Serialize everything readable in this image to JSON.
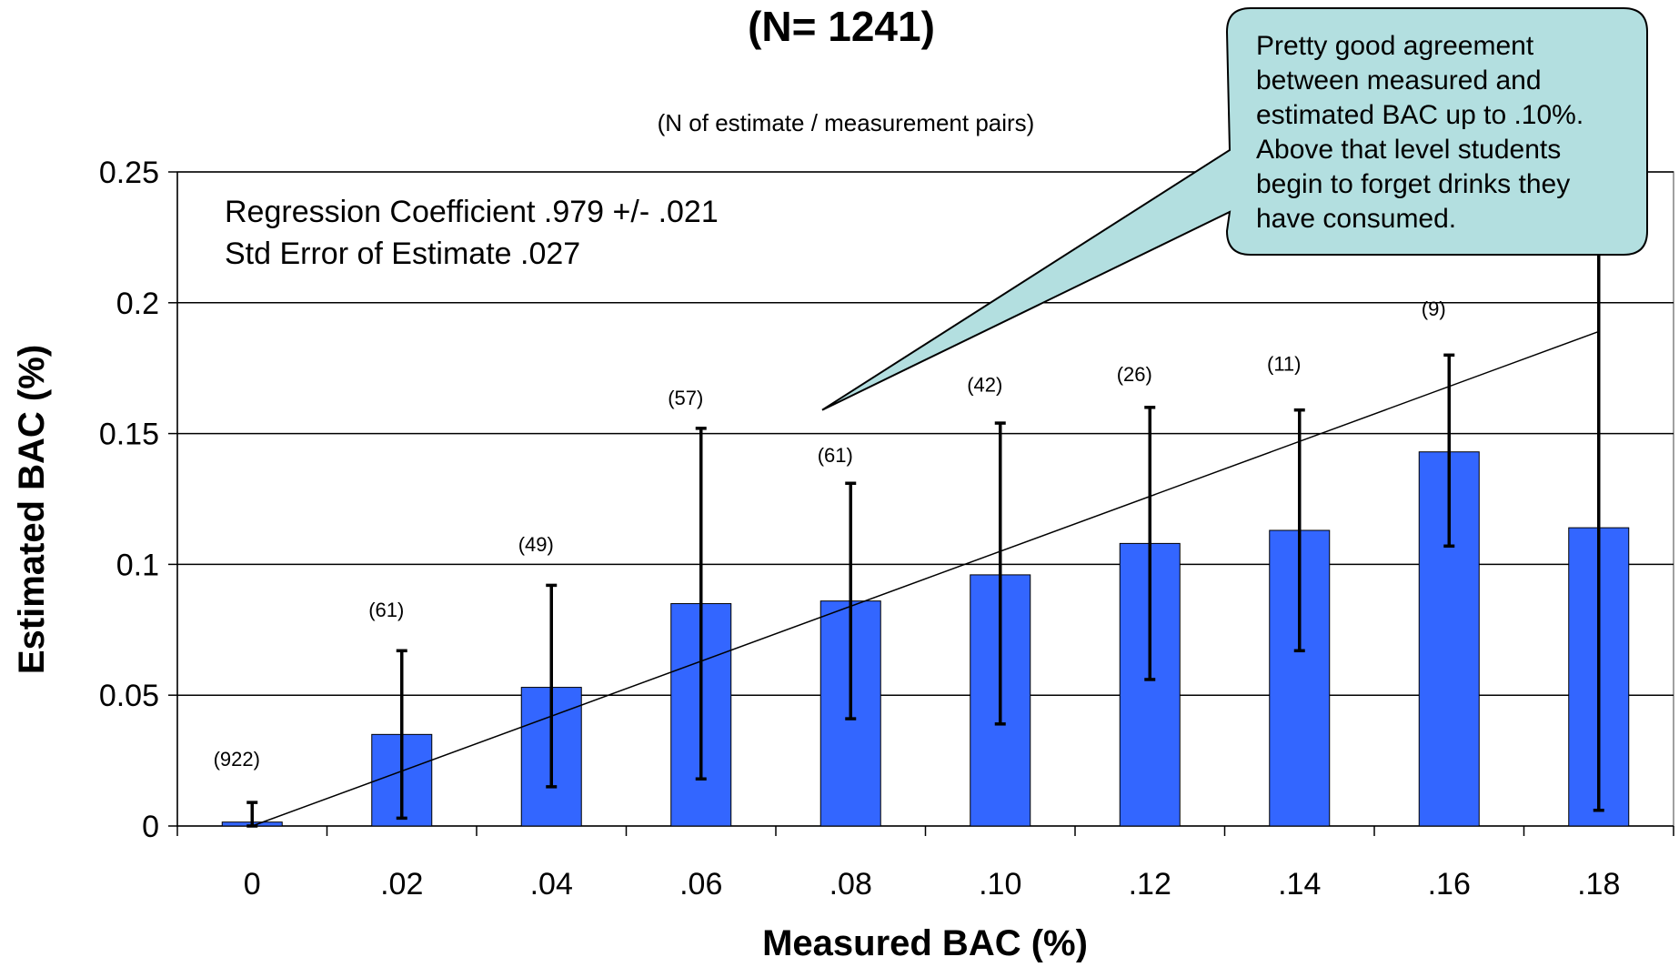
{
  "chart_data": {
    "type": "bar",
    "title": "(N= 1241)",
    "subtitle": "(N of estimate / measurement pairs)",
    "xlabel": "Measured BAC (%)",
    "ylabel": "Estimated BAC (%)",
    "categories": [
      "0",
      ".02",
      ".04",
      ".06",
      ".08",
      ".10",
      ".12",
      ".14",
      ".16",
      ".18"
    ],
    "values": [
      0.0015,
      0.035,
      0.053,
      0.085,
      0.086,
      0.096,
      0.108,
      0.113,
      0.143,
      0.114
    ],
    "error_low": [
      0.0,
      0.003,
      0.015,
      0.018,
      0.041,
      0.039,
      0.056,
      0.067,
      0.107,
      0.006
    ],
    "error_high": [
      0.009,
      0.067,
      0.092,
      0.152,
      0.131,
      0.154,
      0.16,
      0.159,
      0.18,
      0.255
    ],
    "counts": [
      "(922)",
      "(61)",
      "(49)",
      "(57)",
      "(61)",
      "(42)",
      "(26)",
      "(11)",
      "(9)",
      ""
    ],
    "count_y": [
      0.023,
      0.08,
      0.105,
      0.161,
      0.139,
      0.166,
      0.17,
      0.174,
      0.195,
      null
    ],
    "yticks": [
      0,
      0.05,
      0.1,
      0.15,
      0.2,
      0.25
    ],
    "ytick_labels": [
      "0",
      "0.05",
      "0.1",
      "0.15",
      "0.2",
      "0.25"
    ],
    "ylim": [
      0,
      0.25
    ],
    "grid": true,
    "bar_color": "#3366ff",
    "regression_line": {
      "x": [
        0,
        0.18
      ],
      "y": [
        0.0,
        0.189
      ]
    },
    "stats": [
      "Regression Coefficient .979 +/- .021",
      "Std Error of Estimate .027"
    ],
    "callout": {
      "lines": [
        "Pretty good agreement",
        "between measured and",
        "estimated BAC up to .10%.",
        "Above that level students",
        "begin to forget drinks they",
        "have consumed."
      ],
      "fill": "#b3dfe0",
      "pointer_target": {
        "x": 0.0762,
        "y": 0.159
      }
    }
  }
}
